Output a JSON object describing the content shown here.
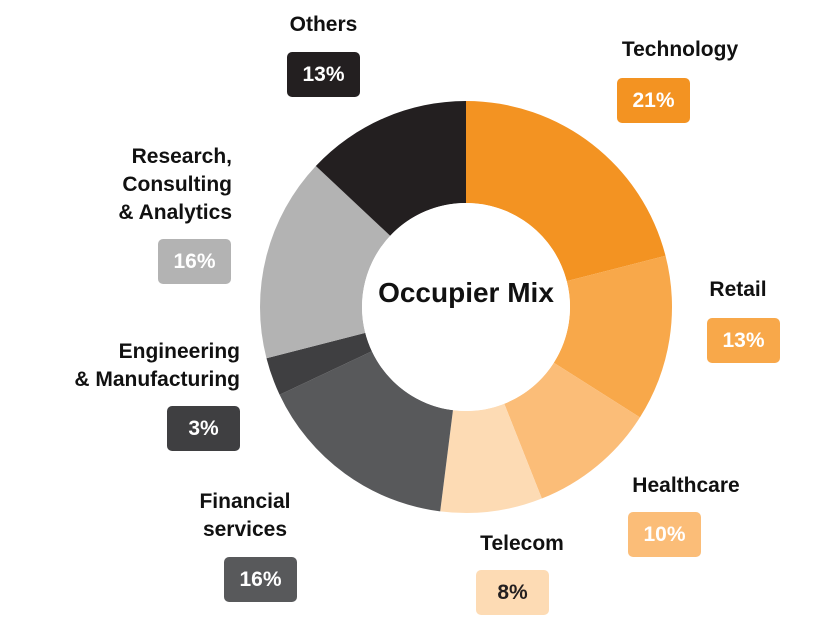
{
  "chart_data": {
    "type": "pie",
    "variant": "donut",
    "title": "Occupier Mix",
    "slices": [
      {
        "label": "Technology",
        "value": 21,
        "display": "21%",
        "color": "#F39322",
        "text_color": "#FFFFFF"
      },
      {
        "label": "Retail",
        "value": 13,
        "display": "13%",
        "color": "#F8A84A",
        "text_color": "#FFFFFF"
      },
      {
        "label": "Healthcare",
        "value": 10,
        "display": "10%",
        "color": "#FBBD78",
        "text_color": "#FFFFFF"
      },
      {
        "label": "Telecom",
        "value": 8,
        "display": "8%",
        "color": "#FDDBB4",
        "text_color": "#231F20"
      },
      {
        "label": "Financial\nservices",
        "value": 16,
        "display": "16%",
        "color": "#58595B",
        "text_color": "#FFFFFF"
      },
      {
        "label": "Engineering\n& Manufacturing",
        "value": 3,
        "display": "3%",
        "color": "#3F3F41",
        "text_color": "#FFFFFF"
      },
      {
        "label": "Research,\nConsulting\n& Analytics",
        "value": 16,
        "display": "16%",
        "color": "#B3B3B3",
        "text_color": "#FFFFFF"
      },
      {
        "label": "Others",
        "value": 13,
        "display": "13%",
        "color": "#231F20",
        "text_color": "#FFFFFF"
      }
    ]
  }
}
